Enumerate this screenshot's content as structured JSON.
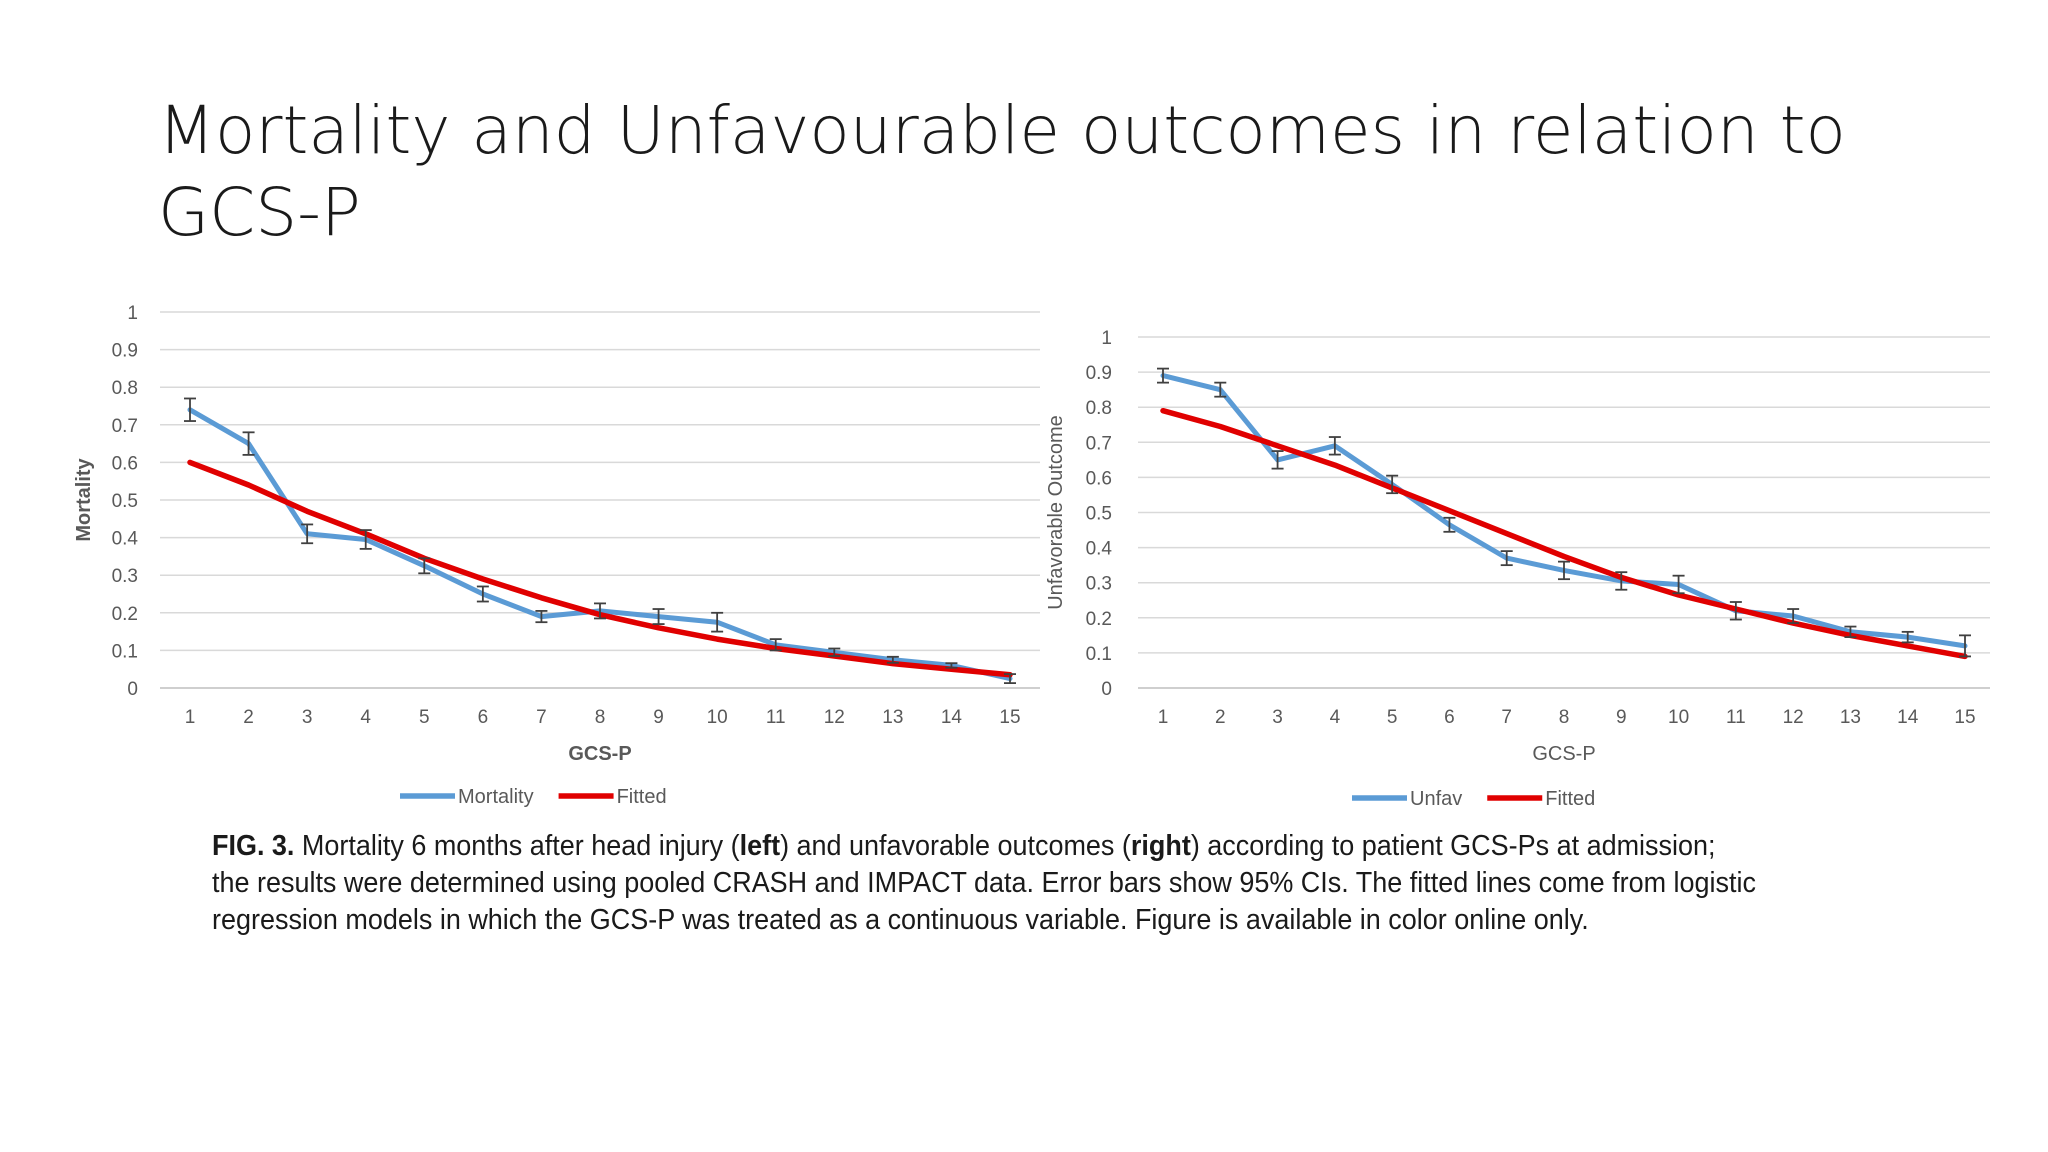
{
  "slide": {
    "title_line1": "Mortality and Unfavourable outcomes in relation to",
    "title_line2": "GCS-P"
  },
  "caption": {
    "fig_label": "FIG. 3.",
    "line1_a": " Mortality 6 months after head injury (",
    "line1_b": "left",
    "line1_c": ") and unfavorable outcomes (",
    "line1_d": "right",
    "line1_e": ") according to patient GCS-Ps at admission;",
    "line2": "the results were determined using pooled CRASH and IMPACT data. Error bars show 95% CIs. The fitted lines come from logistic",
    "line3": "regression models in which the GCS-P was treated as a continuous variable. Figure is available in color online only."
  },
  "colors": {
    "observed": "#5b9bd5",
    "fitted": "#e00000",
    "grid": "#d9d9d9",
    "axis_text": "#595959",
    "error_bar": "#404040"
  },
  "chart_data": [
    {
      "type": "line",
      "xlabel": "GCS-P",
      "ylabel": "Mortality",
      "categories": [
        "1",
        "2",
        "3",
        "4",
        "5",
        "6",
        "7",
        "8",
        "9",
        "10",
        "11",
        "12",
        "13",
        "14",
        "15"
      ],
      "ylim": [
        0,
        1
      ],
      "yticks": [
        "0",
        "0.1",
        "0.2",
        "0.3",
        "0.4",
        "0.5",
        "0.6",
        "0.7",
        "0.8",
        "0.9",
        "1"
      ],
      "grid": true,
      "legend_position": "bottom",
      "series": [
        {
          "name": "Mortality",
          "values": [
            0.74,
            0.65,
            0.41,
            0.395,
            0.325,
            0.25,
            0.19,
            0.205,
            0.19,
            0.175,
            0.115,
            0.095,
            0.075,
            0.06,
            0.025
          ],
          "error": [
            0.03,
            0.03,
            0.025,
            0.025,
            0.02,
            0.02,
            0.015,
            0.02,
            0.02,
            0.025,
            0.015,
            0.01,
            0.008,
            0.006,
            0.012
          ]
        },
        {
          "name": "Fitted",
          "values": [
            0.6,
            0.54,
            0.47,
            0.41,
            0.345,
            0.29,
            0.24,
            0.195,
            0.16,
            0.13,
            0.105,
            0.085,
            0.065,
            0.05,
            0.035
          ]
        }
      ]
    },
    {
      "type": "line",
      "xlabel": "GCS-P",
      "ylabel": "Unfavorable Outcome",
      "categories": [
        "1",
        "2",
        "3",
        "4",
        "5",
        "6",
        "7",
        "8",
        "9",
        "10",
        "11",
        "12",
        "13",
        "14",
        "15"
      ],
      "ylim": [
        0,
        1
      ],
      "yticks": [
        "0",
        "0.1",
        "0.2",
        "0.3",
        "0.4",
        "0.5",
        "0.6",
        "0.7",
        "0.8",
        "0.9",
        "1"
      ],
      "grid": true,
      "legend_position": "bottom",
      "series": [
        {
          "name": "Unfav",
          "values": [
            0.89,
            0.85,
            0.65,
            0.69,
            0.58,
            0.465,
            0.37,
            0.335,
            0.305,
            0.295,
            0.22,
            0.205,
            0.16,
            0.145,
            0.12
          ],
          "error": [
            0.02,
            0.02,
            0.025,
            0.025,
            0.025,
            0.02,
            0.02,
            0.025,
            0.025,
            0.025,
            0.025,
            0.02,
            0.015,
            0.015,
            0.03
          ]
        },
        {
          "name": "Fitted",
          "values": [
            0.79,
            0.745,
            0.69,
            0.635,
            0.57,
            0.505,
            0.44,
            0.375,
            0.315,
            0.265,
            0.225,
            0.185,
            0.15,
            0.12,
            0.09
          ]
        }
      ]
    }
  ]
}
